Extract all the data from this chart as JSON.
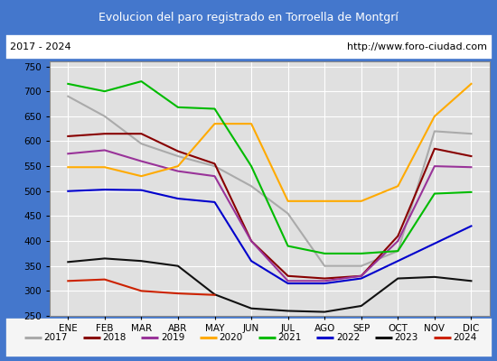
{
  "title": "Evolucion del paro registrado en Torroella de Montgrí",
  "subtitle_left": "2017 - 2024",
  "subtitle_right": "http://www.foro-ciudad.com",
  "xlabel_months": [
    "ENE",
    "FEB",
    "MAR",
    "ABR",
    "MAY",
    "JUN",
    "JUL",
    "AGO",
    "SEP",
    "OCT",
    "NOV",
    "DIC"
  ],
  "ylim": [
    250,
    760
  ],
  "yticks": [
    250,
    300,
    350,
    400,
    450,
    500,
    550,
    600,
    650,
    700,
    750
  ],
  "series": {
    "2017": {
      "color": "#aaaaaa",
      "values": [
        690,
        650,
        595,
        570,
        550,
        510,
        455,
        350,
        350,
        380,
        620,
        615
      ]
    },
    "2018": {
      "color": "#880000",
      "values": [
        610,
        615,
        615,
        580,
        555,
        400,
        330,
        325,
        330,
        410,
        585,
        570
      ]
    },
    "2019": {
      "color": "#993399",
      "values": [
        575,
        582,
        560,
        540,
        530,
        400,
        320,
        320,
        330,
        400,
        550,
        548
      ]
    },
    "2020": {
      "color": "#ffaa00",
      "values": [
        548,
        548,
        530,
        550,
        635,
        635,
        480,
        480,
        480,
        510,
        650,
        715
      ]
    },
    "2021": {
      "color": "#00bb00",
      "values": [
        715,
        700,
        720,
        668,
        665,
        550,
        390,
        375,
        375,
        380,
        495,
        498
      ]
    },
    "2022": {
      "color": "#0000cc",
      "values": [
        500,
        503,
        502,
        485,
        478,
        360,
        315,
        315,
        325,
        360,
        395,
        430
      ]
    },
    "2023": {
      "color": "#111111",
      "values": [
        358,
        365,
        360,
        350,
        293,
        265,
        260,
        258,
        270,
        325,
        328,
        320
      ]
    },
    "2024": {
      "color": "#cc2200",
      "values": [
        320,
        323,
        300,
        295,
        292,
        null,
        null,
        null,
        null,
        null,
        null,
        null
      ]
    }
  },
  "title_bg": "#4477cc",
  "title_color": "#ffffff",
  "plot_bg": "#e0e0e0",
  "border_color": "#4477cc",
  "legend_bg": "#f5f5f5",
  "figsize": [
    5.5,
    4.0
  ],
  "dpi": 100
}
